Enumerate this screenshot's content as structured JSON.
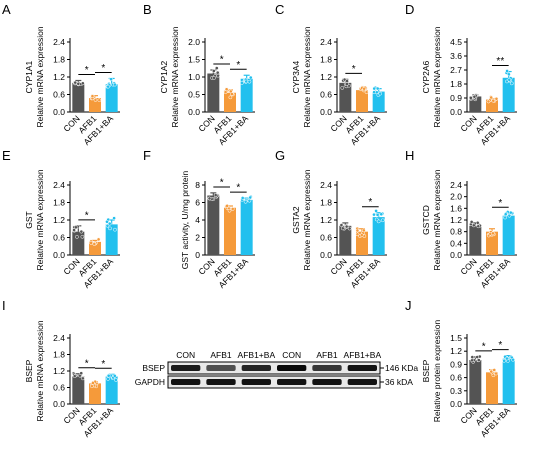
{
  "colors": {
    "con": "#545454",
    "afb1": "#f59a3a",
    "afb1_ba": "#22c0ee",
    "dots": "#ffffff"
  },
  "chart_data": [
    {
      "panel": "A",
      "gene": "CYP1A1",
      "type": "bar",
      "ylabel": "Relative mRNA expression",
      "categories": [
        "CON",
        "AFB1",
        "AFB1+BA"
      ],
      "ticks": [
        "0.0",
        "0.6",
        "1.2",
        "1.8",
        "2.4"
      ],
      "ylim": [
        0,
        2.4
      ],
      "values": [
        1.0,
        0.48,
        0.95
      ],
      "errors": [
        0.08,
        0.08,
        0.2
      ],
      "significance": [
        "*",
        "*"
      ]
    },
    {
      "panel": "B",
      "gene": "CYP1A2",
      "type": "bar",
      "ylabel": "Relative mRNA expression",
      "categories": [
        "CON",
        "AFB1",
        "AFB1+BA"
      ],
      "ticks": [
        "0.0",
        "0.5",
        "1.0",
        "1.5",
        "2.0"
      ],
      "ylim": [
        0,
        2.0
      ],
      "values": [
        1.1,
        0.55,
        0.95
      ],
      "errors": [
        0.1,
        0.08,
        0.1
      ],
      "significance": [
        "*",
        "*"
      ]
    },
    {
      "panel": "C",
      "gene": "CYP3A4",
      "type": "bar",
      "ylabel": "Relative mRNA expression",
      "categories": [
        "CON",
        "AFB1",
        "AFB1+BA"
      ],
      "ticks": [
        "0.0",
        "0.6",
        "1.2",
        "1.8",
        "2.4"
      ],
      "ylim": [
        0,
        2.4
      ],
      "values": [
        1.0,
        0.75,
        0.7
      ],
      "errors": [
        0.12,
        0.06,
        0.1
      ],
      "significance": [
        "*"
      ]
    },
    {
      "panel": "D",
      "gene": "CYP2A6",
      "type": "bar",
      "ylabel": "Relative mRNA expression",
      "categories": [
        "CON",
        "AFB1",
        "AFB1+BA"
      ],
      "ticks": [
        "0.0",
        "0.9",
        "1.8",
        "2.7",
        "3.6",
        "4.5"
      ],
      "ylim": [
        0,
        4.5
      ],
      "values": [
        1.0,
        0.8,
        2.2
      ],
      "errors": [
        0.1,
        0.05,
        0.4
      ],
      "significance": [
        "**"
      ]
    },
    {
      "panel": "E",
      "gene": "GST",
      "type": "bar",
      "ylabel": "Relative mRNA expression",
      "categories": [
        "CON",
        "AFB1",
        "AFB1+BA"
      ],
      "ticks": [
        "0.0",
        "0.6",
        "1.2",
        "1.8",
        "2.4"
      ],
      "ylim": [
        0,
        2.4
      ],
      "values": [
        0.8,
        0.45,
        1.05
      ],
      "errors": [
        0.2,
        0.05,
        0.15
      ],
      "significance": [
        "*"
      ]
    },
    {
      "panel": "F",
      "gene": "",
      "type": "bar",
      "ylabel": "GST activity, U/mg protein",
      "categories": [
        "CON",
        "AFB1",
        "AFB1+BA"
      ],
      "ticks": [
        "0",
        "2",
        "4",
        "6",
        "8"
      ],
      "ylim": [
        0,
        8
      ],
      "values": [
        6.8,
        5.4,
        6.3
      ],
      "errors": [
        0.3,
        0.2,
        0.2
      ],
      "significance": [
        "*",
        "*"
      ]
    },
    {
      "panel": "G",
      "gene": "GSTA2",
      "type": "bar",
      "ylabel": "Relative mRNA expression",
      "categories": [
        "CON",
        "AFB1",
        "AFB1+BA"
      ],
      "ticks": [
        "0.0",
        "0.6",
        "1.2",
        "1.8",
        "2.4"
      ],
      "ylim": [
        0,
        2.4
      ],
      "values": [
        1.0,
        0.8,
        1.3
      ],
      "errors": [
        0.1,
        0.1,
        0.15
      ],
      "significance": [
        "*"
      ]
    },
    {
      "panel": "H",
      "gene": "GSTCD",
      "type": "bar",
      "ylabel": "Relative mRNA expression",
      "categories": [
        "CON",
        "AFB1",
        "AFB1+BA"
      ],
      "ticks": [
        "0.0",
        "0.4",
        "0.8",
        "1.2",
        "1.6",
        "2.0",
        "2.4"
      ],
      "ylim": [
        0,
        2.4
      ],
      "values": [
        1.0,
        0.8,
        1.35
      ],
      "errors": [
        0.1,
        0.1,
        0.08
      ],
      "significance": [
        "*"
      ]
    },
    {
      "panel": "I",
      "gene": "BSEP",
      "type": "bar",
      "ylabel": "Relative mRNA expression",
      "categories": [
        "CON",
        "AFB1",
        "AFB1+BA"
      ],
      "ticks": [
        "0.0",
        "0.6",
        "1.2",
        "1.8",
        "2.4"
      ],
      "ylim": [
        0,
        2.4
      ],
      "values": [
        1.0,
        0.75,
        1.0
      ],
      "errors": [
        0.1,
        0.06,
        0.08
      ],
      "significance": [
        "*",
        "*"
      ]
    },
    {
      "panel": "J",
      "gene": "BSEP",
      "type": "bar",
      "ylabel": "Relative protein expression",
      "categories": [
        "CON",
        "AFB1",
        "AFB1+BA"
      ],
      "ticks": [
        "0.0",
        "0.3",
        "0.6",
        "0.9",
        "1.2",
        "1.5"
      ],
      "ylim": [
        0,
        1.5
      ],
      "values": [
        1.0,
        0.72,
        1.03
      ],
      "errors": [
        0.07,
        0.06,
        0.07
      ],
      "significance": [
        "*",
        "*"
      ]
    }
  ],
  "blot": {
    "lanes": [
      "CON",
      "AFB1",
      "AFB1+BA",
      "CON",
      "AFB1",
      "AFB1+BA"
    ],
    "rows": [
      {
        "protein": "BSEP",
        "size": "146 KDa",
        "intensity": [
          0.85,
          0.55,
          0.8,
          0.95,
          0.7,
          0.9
        ]
      },
      {
        "protein": "GAPDH",
        "size": "36 kDA",
        "intensity": [
          0.9,
          0.9,
          0.9,
          0.9,
          0.9,
          0.9
        ]
      }
    ]
  }
}
